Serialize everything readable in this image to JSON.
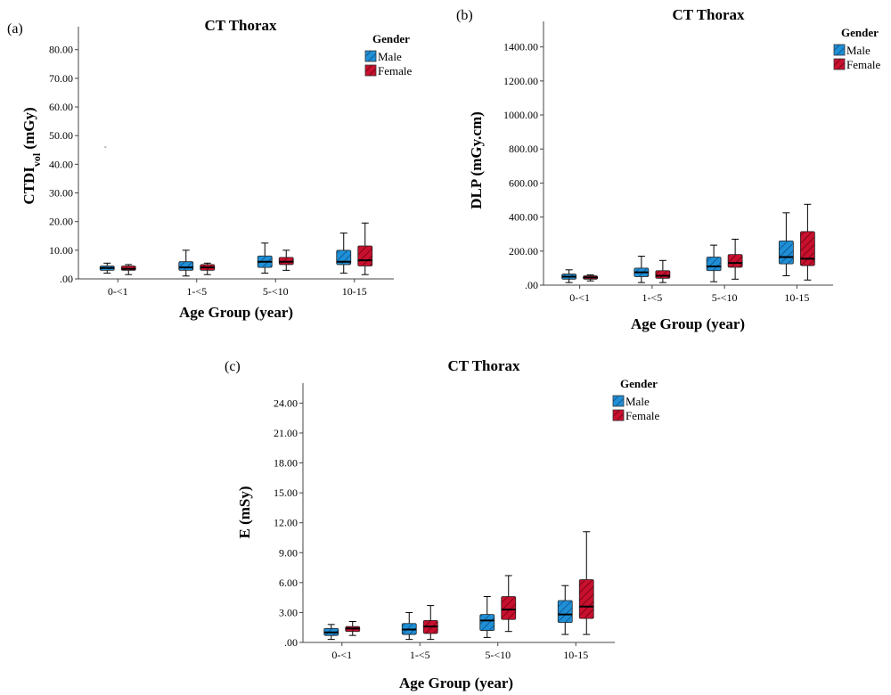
{
  "colors": {
    "male": "#1f8fd6",
    "female": "#c8102e",
    "axis": "#444444",
    "text": "#000000"
  },
  "legend": {
    "title": "Gender",
    "items": [
      "Male",
      "Female"
    ]
  },
  "chart_data": [
    {
      "type": "boxplot",
      "panel": "(a)",
      "title": "CT Thorax",
      "xlabel": "Age Group (year)",
      "ylabel_main": "CTDI",
      "ylabel_sub": "vol",
      "ylabel_rest": " (mGy)",
      "ylim": [
        0,
        88
      ],
      "yticks": [
        0,
        10,
        20,
        30,
        40,
        50,
        60,
        70,
        80
      ],
      "ytick_labels": [
        ".00",
        "10.00",
        "20.00",
        "30.00",
        "40.00",
        "50.00",
        "60.00",
        "70.00",
        "80.00"
      ],
      "categories": [
        "0-<1",
        "1-<5",
        "5-<10",
        "10-15"
      ],
      "series": [
        {
          "name": "Male",
          "boxes": [
            {
              "min": 2,
              "q1": 3,
              "median": 3.8,
              "q3": 4.5,
              "max": 5.5
            },
            {
              "min": 1,
              "q1": 3,
              "median": 4,
              "q3": 6,
              "max": 10
            },
            {
              "min": 2,
              "q1": 4,
              "median": 6,
              "q3": 8,
              "max": 12.5
            },
            {
              "min": 2,
              "q1": 5,
              "median": 6,
              "q3": 10,
              "max": 16
            }
          ]
        },
        {
          "name": "Female",
          "boxes": [
            {
              "min": 1.5,
              "q1": 3,
              "median": 3.5,
              "q3": 4.5,
              "max": 5
            },
            {
              "min": 1.5,
              "q1": 3,
              "median": 4,
              "q3": 5,
              "max": 5.5
            },
            {
              "min": 3,
              "q1": 5,
              "median": 6,
              "q3": 7.5,
              "max": 10
            },
            {
              "min": 1.5,
              "q1": 4.5,
              "median": 6.5,
              "q3": 11.5,
              "max": 19.5
            }
          ]
        }
      ],
      "outliers": [
        {
          "category": "0-<1",
          "series": "Male",
          "values": [
            46
          ]
        }
      ]
    },
    {
      "type": "boxplot",
      "panel": "(b)",
      "title": "CT Thorax",
      "xlabel": "Age Group (year)",
      "ylabel_main": "DLP (mGy.cm)",
      "ylabel_sub": "",
      "ylabel_rest": "",
      "ylim": [
        0,
        1550
      ],
      "yticks": [
        0,
        200,
        400,
        600,
        800,
        1000,
        1200,
        1400
      ],
      "ytick_labels": [
        ".00",
        "200.00",
        "400.00",
        "600.00",
        "800.00",
        "1000.00",
        "1200.00",
        "1400.00"
      ],
      "categories": [
        "0-<1",
        "1-<5",
        "5-<10",
        "10-15"
      ],
      "series": [
        {
          "name": "Male",
          "boxes": [
            {
              "min": 15,
              "q1": 35,
              "median": 50,
              "q3": 65,
              "max": 90
            },
            {
              "min": 15,
              "q1": 50,
              "median": 75,
              "q3": 100,
              "max": 170
            },
            {
              "min": 20,
              "q1": 85,
              "median": 110,
              "q3": 165,
              "max": 235
            },
            {
              "min": 55,
              "q1": 125,
              "median": 165,
              "q3": 260,
              "max": 425
            }
          ]
        },
        {
          "name": "Female",
          "boxes": [
            {
              "min": 25,
              "q1": 35,
              "median": 45,
              "q3": 55,
              "max": 60
            },
            {
              "min": 15,
              "q1": 40,
              "median": 55,
              "q3": 85,
              "max": 145
            },
            {
              "min": 35,
              "q1": 105,
              "median": 130,
              "q3": 180,
              "max": 270
            },
            {
              "min": 30,
              "q1": 115,
              "median": 155,
              "q3": 315,
              "max": 475
            }
          ]
        }
      ],
      "outliers": []
    },
    {
      "type": "boxplot",
      "panel": "(c)",
      "title": "CT Thorax",
      "xlabel": "Age Group (year)",
      "ylabel_main": "E (mSy)",
      "ylabel_sub": "",
      "ylabel_rest": "",
      "ylim": [
        0,
        26
      ],
      "yticks": [
        0,
        3,
        6,
        9,
        12,
        15,
        18,
        21,
        24
      ],
      "ytick_labels": [
        ".00",
        "3.00",
        "6.00",
        "9.00",
        "12.00",
        "15.00",
        "18.00",
        "21.00",
        "24.00"
      ],
      "categories": [
        "0-<1",
        "1-<5",
        "5-<10",
        "10-15"
      ],
      "series": [
        {
          "name": "Male",
          "boxes": [
            {
              "min": 0.3,
              "q1": 0.7,
              "median": 1.0,
              "q3": 1.4,
              "max": 1.8
            },
            {
              "min": 0.3,
              "q1": 0.8,
              "median": 1.3,
              "q3": 1.9,
              "max": 3.0
            },
            {
              "min": 0.5,
              "q1": 1.2,
              "median": 2.2,
              "q3": 2.8,
              "max": 4.6
            },
            {
              "min": 0.8,
              "q1": 2.0,
              "median": 2.8,
              "q3": 4.2,
              "max": 5.7
            }
          ]
        },
        {
          "name": "Female",
          "boxes": [
            {
              "min": 0.7,
              "q1": 1.1,
              "median": 1.4,
              "q3": 1.6,
              "max": 2.1
            },
            {
              "min": 0.3,
              "q1": 0.9,
              "median": 1.6,
              "q3": 2.2,
              "max": 3.7
            },
            {
              "min": 1.1,
              "q1": 2.3,
              "median": 3.3,
              "q3": 4.6,
              "max": 6.7
            },
            {
              "min": 0.8,
              "q1": 2.4,
              "median": 3.6,
              "q3": 6.3,
              "max": 11.1
            }
          ]
        }
      ],
      "outliers": []
    }
  ]
}
